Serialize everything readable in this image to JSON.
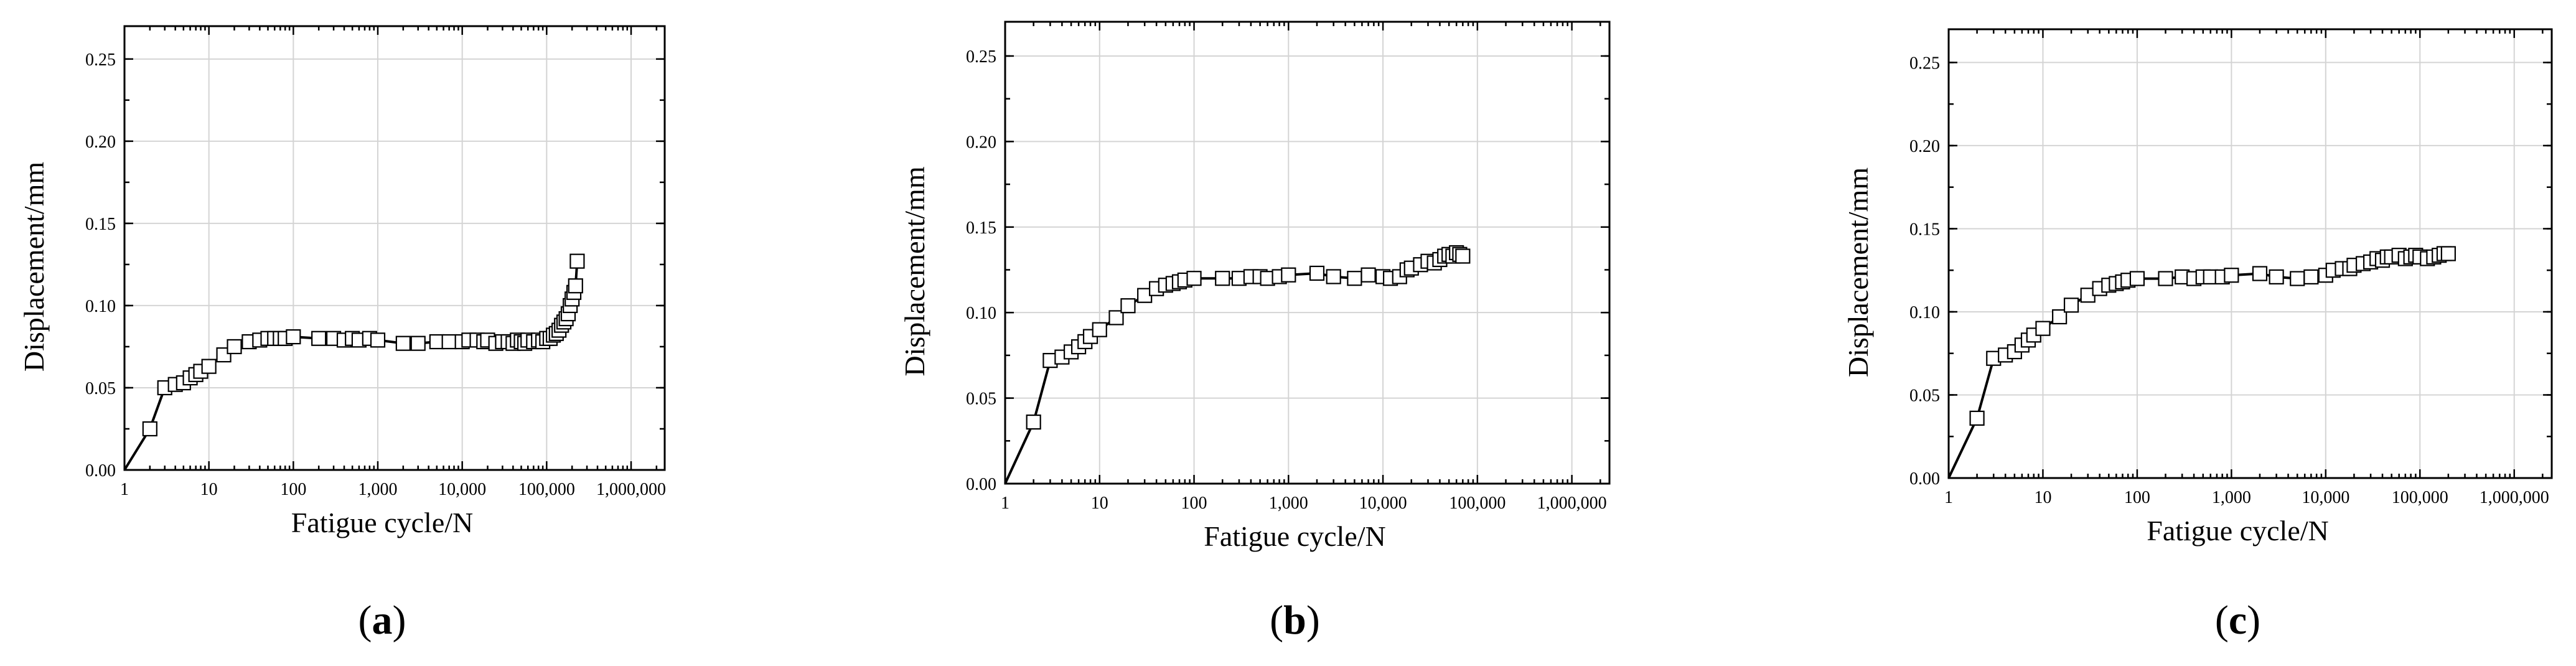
{
  "chart_data": [
    {
      "type": "scatter",
      "panel_label": "a",
      "xlabel": "Fatigue cycle/N",
      "ylabel": "Displacement/mm",
      "xscale": "log",
      "xlim": [
        1,
        2500000
      ],
      "ylim": [
        0,
        0.27
      ],
      "xticks": [
        1,
        10,
        100,
        1000,
        10000,
        100000,
        1000000
      ],
      "xtick_labels": [
        "1",
        "10",
        "100",
        "1,000",
        "10,000",
        "100,000",
        "1,000,000"
      ],
      "yticks": [
        0,
        0.05,
        0.1,
        0.15,
        0.2,
        0.25
      ],
      "ytick_labels": [
        "0.00",
        "0.05",
        "0.10",
        "0.15",
        "0.20",
        "0.25"
      ],
      "grid": true,
      "series": [
        {
          "marker": "open-square",
          "line": "solid",
          "x": [
            1,
            2,
            3,
            4,
            5,
            6,
            7,
            8,
            10,
            15,
            20,
            30,
            40,
            50,
            60,
            70,
            80,
            100,
            200,
            300,
            400,
            500,
            600,
            800,
            1000,
            2000,
            3000,
            5000,
            7000,
            10000,
            12000,
            15000,
            18000,
            20000,
            25000,
            30000,
            35000,
            40000,
            45000,
            50000,
            55000,
            60000,
            70000,
            80000,
            90000,
            100000,
            110000,
            120000,
            130000,
            140000,
            150000,
            160000,
            170000,
            180000,
            190000,
            200000,
            210000,
            220000,
            230000
          ],
          "y": [
            0.0,
            0.025,
            0.05,
            0.052,
            0.053,
            0.056,
            0.058,
            0.06,
            0.063,
            0.07,
            0.075,
            0.078,
            0.079,
            0.08,
            0.08,
            0.08,
            0.08,
            0.081,
            0.08,
            0.08,
            0.079,
            0.08,
            0.079,
            0.08,
            0.079,
            0.077,
            0.077,
            0.078,
            0.078,
            0.078,
            0.079,
            0.079,
            0.078,
            0.079,
            0.077,
            0.078,
            0.078,
            0.077,
            0.079,
            0.078,
            0.077,
            0.079,
            0.078,
            0.079,
            0.078,
            0.08,
            0.08,
            0.082,
            0.083,
            0.085,
            0.088,
            0.09,
            0.092,
            0.095,
            0.1,
            0.104,
            0.108,
            0.112,
            0.127
          ]
        }
      ]
    },
    {
      "type": "scatter",
      "panel_label": "b",
      "xlabel": "Fatigue cycle/N",
      "ylabel": "Displacement/mm",
      "xscale": "log",
      "xlim": [
        1,
        2500000
      ],
      "ylim": [
        0,
        0.27
      ],
      "xticks": [
        1,
        10,
        100,
        1000,
        10000,
        100000,
        1000000
      ],
      "xtick_labels": [
        "1",
        "10",
        "100",
        "1,000",
        "10,000",
        "100,000",
        "1,000,000"
      ],
      "yticks": [
        0,
        0.05,
        0.1,
        0.15,
        0.2,
        0.25
      ],
      "ytick_labels": [
        "0.00",
        "0.05",
        "0.10",
        "0.15",
        "0.20",
        "0.25"
      ],
      "grid": true,
      "series": [
        {
          "marker": "open-square",
          "line": "solid",
          "x": [
            1,
            2,
            3,
            4,
            5,
            6,
            7,
            8,
            10,
            15,
            20,
            30,
            40,
            50,
            60,
            70,
            80,
            100,
            200,
            300,
            400,
            500,
            600,
            800,
            1000,
            2000,
            3000,
            5000,
            7000,
            10000,
            12000,
            15000,
            18000,
            20000,
            25000,
            30000,
            35000,
            40000,
            45000,
            50000,
            55000,
            60000,
            65000,
            70000
          ],
          "y": [
            0.0,
            0.036,
            0.072,
            0.074,
            0.077,
            0.08,
            0.083,
            0.086,
            0.09,
            0.097,
            0.104,
            0.11,
            0.114,
            0.116,
            0.117,
            0.118,
            0.119,
            0.12,
            0.12,
            0.12,
            0.121,
            0.121,
            0.12,
            0.121,
            0.122,
            0.123,
            0.121,
            0.12,
            0.122,
            0.121,
            0.12,
            0.121,
            0.125,
            0.126,
            0.128,
            0.13,
            0.129,
            0.131,
            0.133,
            0.134,
            0.133,
            0.135,
            0.134,
            0.133
          ]
        }
      ]
    },
    {
      "type": "scatter",
      "panel_label": "c",
      "xlabel": "Fatigue cycle/N",
      "ylabel": "Displacement/mm",
      "xscale": "log",
      "xlim": [
        1,
        2500000
      ],
      "ylim": [
        0,
        0.27
      ],
      "xticks": [
        1,
        10,
        100,
        1000,
        10000,
        100000,
        1000000
      ],
      "xtick_labels": [
        "1",
        "10",
        "100",
        "1,000",
        "10,000",
        "100,000",
        "1,000,000"
      ],
      "yticks": [
        0,
        0.05,
        0.1,
        0.15,
        0.2,
        0.25
      ],
      "ytick_labels": [
        "0.00",
        "0.05",
        "0.10",
        "0.15",
        "0.20",
        "0.25"
      ],
      "grid": true,
      "series": [
        {
          "marker": "open-square",
          "line": "solid",
          "x": [
            1,
            2,
            3,
            4,
            5,
            6,
            7,
            8,
            10,
            15,
            20,
            30,
            40,
            50,
            60,
            70,
            80,
            100,
            200,
            300,
            400,
            500,
            600,
            800,
            1000,
            2000,
            3000,
            5000,
            7000,
            10000,
            12000,
            15000,
            18000,
            20000,
            25000,
            30000,
            35000,
            40000,
            45000,
            50000,
            60000,
            70000,
            80000,
            90000,
            100000,
            120000,
            140000,
            160000,
            180000,
            200000
          ],
          "y": [
            0.0,
            0.036,
            0.072,
            0.074,
            0.076,
            0.08,
            0.083,
            0.086,
            0.09,
            0.097,
            0.104,
            0.11,
            0.114,
            0.116,
            0.117,
            0.118,
            0.119,
            0.12,
            0.12,
            0.121,
            0.12,
            0.121,
            0.121,
            0.121,
            0.122,
            0.123,
            0.121,
            0.12,
            0.121,
            0.122,
            0.125,
            0.126,
            0.126,
            0.128,
            0.129,
            0.13,
            0.132,
            0.131,
            0.133,
            0.133,
            0.134,
            0.132,
            0.133,
            0.134,
            0.133,
            0.132,
            0.133,
            0.134,
            0.135,
            0.135
          ]
        }
      ]
    }
  ]
}
